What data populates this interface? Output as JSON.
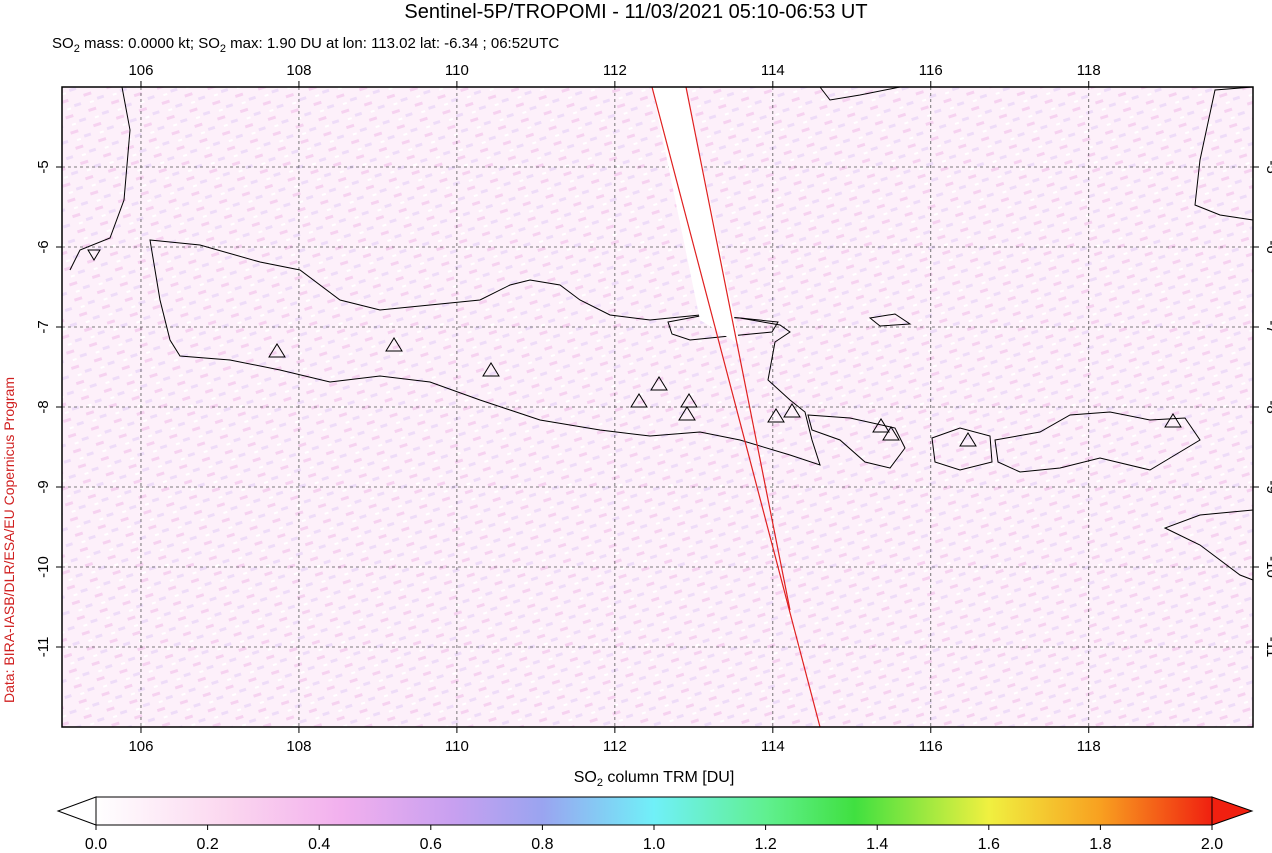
{
  "title": "Sentinel-5P/TROPOMI - 11/03/2021 05:10-06:53 UT",
  "subtitle": [
    "SO",
    "2",
    " mass: 0.0000 kt; SO",
    "2",
    " max: 1.90 DU at lon: 113.02 lat: -6.34 ; 06:52UTC"
  ],
  "credit": "Data: BIRA-IASB/DLR/ESA/EU Copernicus Program",
  "map": {
    "xlim": [
      105,
      120.08
    ],
    "ylim": [
      -12,
      -4
    ],
    "xticks": [
      106,
      108,
      110,
      112,
      114,
      116,
      118
    ],
    "yticks": [
      -5,
      -6,
      -7,
      -8,
      -9,
      -10,
      -11
    ]
  },
  "colorbar": {
    "label": [
      "SO",
      "2",
      " column TRM [DU]"
    ],
    "lim": [
      0,
      2
    ],
    "ticks": [
      {
        "value": 0,
        "label": "0.0"
      },
      {
        "value": 0.2,
        "label": "0.2"
      },
      {
        "value": 0.4,
        "label": "0.4"
      },
      {
        "value": 0.6,
        "label": "0.6"
      },
      {
        "value": 0.8,
        "label": "0.8"
      },
      {
        "value": 1,
        "label": "1.0"
      },
      {
        "value": 1.2,
        "label": "1.2"
      },
      {
        "value": 1.4,
        "label": "1.4"
      },
      {
        "value": 1.6,
        "label": "1.6"
      },
      {
        "value": 1.8,
        "label": "1.8"
      },
      {
        "value": 2,
        "label": "2.0"
      }
    ]
  }
}
